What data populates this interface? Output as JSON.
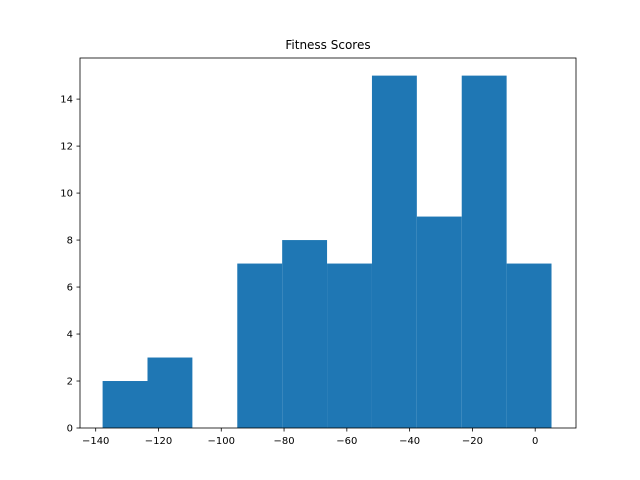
{
  "chart_data": {
    "type": "bar",
    "title": "Fitness Scores",
    "xlabel": "",
    "ylabel": "",
    "bin_edges": [
      -137.8,
      -123.5,
      -109.2,
      -94.9,
      -80.6,
      -66.3,
      -52.0,
      -37.7,
      -23.4,
      -9.1,
      5.2
    ],
    "counts": [
      2,
      3,
      0,
      7,
      8,
      7,
      15,
      9,
      15,
      7
    ],
    "xlim": [
      -145,
      13
    ],
    "ylim": [
      0,
      15.75
    ],
    "xticks": [
      -140,
      -120,
      -100,
      -80,
      -60,
      -40,
      -20,
      0
    ],
    "xtick_labels": [
      "−140",
      "−120",
      "−100",
      "−80",
      "−60",
      "−40",
      "−20",
      "0"
    ],
    "yticks": [
      0,
      2,
      4,
      6,
      8,
      10,
      12,
      14
    ],
    "ytick_labels": [
      "0",
      "2",
      "4",
      "6",
      "8",
      "10",
      "12",
      "14"
    ],
    "bar_color": "#1f77b4",
    "grid": false,
    "legend": "none"
  }
}
